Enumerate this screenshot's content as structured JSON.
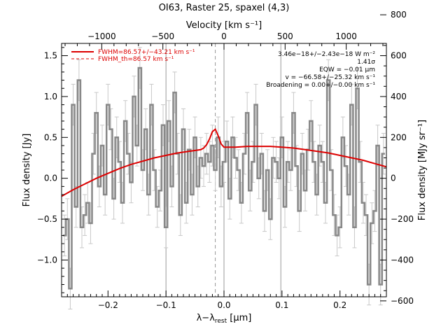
{
  "chart_data": {
    "type": "line",
    "title": "OI63, Raster 25, spaxel (4,3)",
    "xlabel_base": "λ−λ",
    "xlabel_sub": "rest",
    "xlabel_unit": " [μm]",
    "ylabel": "Flux density [Jy]",
    "top_xlabel": "Velocity [km s⁻¹]",
    "right_ylabel": "Flux density [MJy sr⁻¹]",
    "xlim": [
      -0.28,
      0.28
    ],
    "ylim": [
      -1.45,
      1.65
    ],
    "xticks": [
      -0.2,
      -0.1,
      0.0,
      0.1,
      0.2
    ],
    "xtick_labels": [
      "−0.2",
      "−0.1",
      "0.0",
      "0.1",
      "0.2"
    ],
    "yticks": [
      -1.0,
      -0.5,
      0.0,
      0.5,
      1.0,
      1.5
    ],
    "ytick_labels": [
      "−1.0",
      "−0.5",
      "0.0",
      "0.5",
      "1.0",
      "1.5"
    ],
    "top_ticks": [
      -1000,
      -500,
      0,
      500,
      1000
    ],
    "top_tick_labels": [
      "−1000",
      "−500",
      "0",
      "500",
      "1000"
    ],
    "right_ticks": [
      -600,
      -400,
      -200,
      0,
      200,
      400,
      600,
      800
    ],
    "right_tick_labels": [
      "−600",
      "−400",
      "−200",
      "0",
      "200",
      "400",
      "600",
      "800"
    ],
    "vertical_lines": [
      -0.1,
      0.0,
      0.098
    ],
    "dashed_line": -0.015,
    "annotations": [
      "3.46e−18+/−2.43e−18 W m⁻²",
      "1.41σ",
      "EQW = −0.01 μm",
      "v = −66.58+/−25.32 km s⁻¹",
      "Broadening = 0.00+/−0.00 km s⁻¹"
    ],
    "legend": [
      {
        "label": "FWHM=86.57+/−43.21 km s⁻¹",
        "style": "solid",
        "color": "#dd0000"
      },
      {
        "label": "FWHM_th=86.57 km s⁻¹",
        "style": "dashed",
        "color": "#dd0000"
      }
    ],
    "colors": {
      "spectrum": "#888888",
      "errorbar": "#c8c8c8",
      "fit": "#dd0000",
      "axes": "#000000"
    },
    "series": [
      {
        "name": "spectrum",
        "type": "step",
        "x": [
          -0.275,
          -0.27,
          -0.265,
          -0.26,
          -0.255,
          -0.25,
          -0.245,
          -0.24,
          -0.235,
          -0.23,
          -0.225,
          -0.22,
          -0.215,
          -0.21,
          -0.205,
          -0.2,
          -0.195,
          -0.19,
          -0.185,
          -0.18,
          -0.175,
          -0.17,
          -0.165,
          -0.16,
          -0.155,
          -0.15,
          -0.145,
          -0.14,
          -0.135,
          -0.13,
          -0.125,
          -0.12,
          -0.115,
          -0.11,
          -0.105,
          -0.1,
          -0.095,
          -0.09,
          -0.085,
          -0.08,
          -0.075,
          -0.07,
          -0.065,
          -0.06,
          -0.055,
          -0.05,
          -0.045,
          -0.04,
          -0.035,
          -0.03,
          -0.025,
          -0.02,
          -0.015,
          -0.01,
          -0.005,
          0.0,
          0.005,
          0.01,
          0.015,
          0.02,
          0.025,
          0.03,
          0.035,
          0.04,
          0.045,
          0.05,
          0.055,
          0.06,
          0.065,
          0.07,
          0.075,
          0.08,
          0.085,
          0.09,
          0.095,
          0.1,
          0.105,
          0.11,
          0.115,
          0.12,
          0.125,
          0.13,
          0.135,
          0.14,
          0.145,
          0.15,
          0.155,
          0.16,
          0.165,
          0.17,
          0.175,
          0.18,
          0.185,
          0.19,
          0.195,
          0.2,
          0.205,
          0.21,
          0.215,
          0.22,
          0.225,
          0.23,
          0.235,
          0.24,
          0.245,
          0.25,
          0.255,
          0.26,
          0.265,
          0.27,
          0.275
        ],
        "y": [
          -0.7,
          -0.5,
          -1.35,
          0.9,
          -0.35,
          1.2,
          -0.6,
          -0.45,
          -0.3,
          -0.55,
          0.3,
          0.8,
          -0.1,
          0.4,
          -0.2,
          0.9,
          0.6,
          -0.25,
          0.5,
          0.2,
          -0.3,
          0.7,
          0.3,
          -0.05,
          1.0,
          0.4,
          1.35,
          0.1,
          0.6,
          -0.2,
          0.9,
          0.1,
          -0.35,
          -0.15,
          0.65,
          -0.6,
          0.7,
          -0.1,
          1.05,
          0.3,
          -0.45,
          0.6,
          -0.3,
          0.35,
          -0.2,
          0.5,
          -0.1,
          0.25,
          0.15,
          0.3,
          0.2,
          0.4,
          0.1,
          0.5,
          -0.1,
          0.2,
          0.45,
          -0.25,
          0.5,
          0.25,
          0.1,
          -0.3,
          0.3,
          0.8,
          -0.15,
          0.2,
          0.9,
          0.0,
          0.3,
          -0.4,
          0.1,
          -0.5,
          0.25,
          0.2,
          0.0,
          0.5,
          -0.35,
          0.2,
          0.1,
          0.8,
          0.15,
          -0.4,
          0.3,
          -0.15,
          0.35,
          0.7,
          0.2,
          -0.2,
          0.4,
          0.2,
          -0.3,
          1.2,
          0.1,
          -0.45,
          -0.7,
          -0.6,
          0.5,
          0.15,
          -0.2,
          0.9,
          -0.6,
          1.1,
          0.2,
          -0.3,
          -0.45,
          -1.3,
          -0.55,
          -0.4,
          0.4,
          -1.3,
          0.3
        ],
        "yerr": 0.25
      },
      {
        "name": "fit",
        "type": "line",
        "x": [
          -0.28,
          -0.26,
          -0.24,
          -0.22,
          -0.2,
          -0.18,
          -0.16,
          -0.14,
          -0.12,
          -0.1,
          -0.08,
          -0.06,
          -0.04,
          -0.035,
          -0.03,
          -0.025,
          -0.02,
          -0.015,
          -0.01,
          -0.005,
          0.0,
          0.01,
          0.02,
          0.04,
          0.06,
          0.08,
          0.1,
          0.12,
          0.14,
          0.16,
          0.18,
          0.2,
          0.22,
          0.24,
          0.26,
          0.28
        ],
        "y": [
          -0.22,
          -0.14,
          -0.07,
          0.0,
          0.06,
          0.12,
          0.17,
          0.21,
          0.25,
          0.28,
          0.31,
          0.33,
          0.35,
          0.37,
          0.41,
          0.48,
          0.57,
          0.6,
          0.52,
          0.42,
          0.38,
          0.38,
          0.38,
          0.39,
          0.39,
          0.39,
          0.38,
          0.37,
          0.35,
          0.33,
          0.31,
          0.28,
          0.25,
          0.22,
          0.18,
          0.14
        ]
      }
    ]
  }
}
